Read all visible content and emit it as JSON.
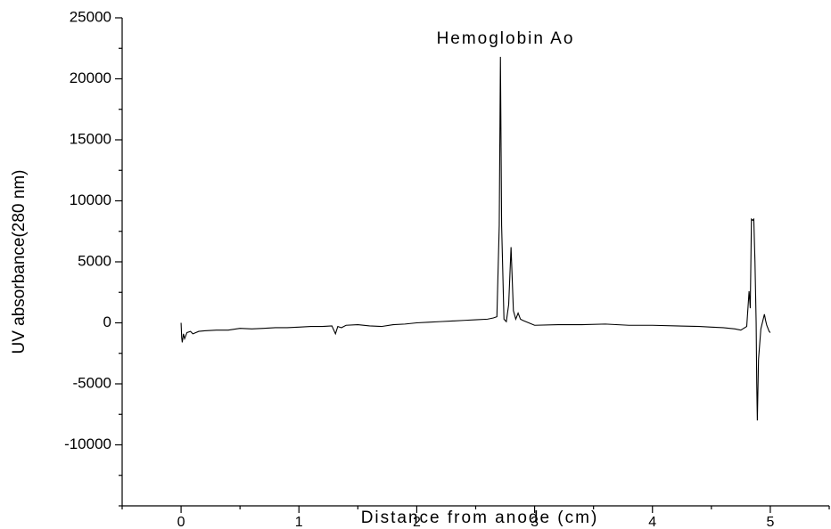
{
  "chart_data": {
    "type": "line",
    "annotation": "Hemoglobin Ao",
    "x_label": "Distance from anode (cm)",
    "y_label": "UV absorbance(280 nm)",
    "xlim": [
      -0.5,
      5.5
    ],
    "xticks": [
      0,
      1,
      2,
      3,
      4,
      5
    ],
    "ylim": [
      -15000,
      25000
    ],
    "yticks": [
      -10000,
      -5000,
      0,
      5000,
      10000,
      15000,
      20000,
      25000
    ],
    "grid": false,
    "x": [
      0,
      0.005,
      0.01,
      0.02,
      0.03,
      0.05,
      0.08,
      0.1,
      0.15,
      0.2,
      0.3,
      0.4,
      0.5,
      0.6,
      0.7,
      0.8,
      0.9,
      1.0,
      1.1,
      1.2,
      1.28,
      1.31,
      1.33,
      1.36,
      1.4,
      1.5,
      1.6,
      1.7,
      1.8,
      1.9,
      2.0,
      2.1,
      2.2,
      2.3,
      2.4,
      2.5,
      2.6,
      2.65,
      2.68,
      2.7,
      2.71,
      2.72,
      2.74,
      2.76,
      2.78,
      2.8,
      2.82,
      2.84,
      2.86,
      2.88,
      2.9,
      2.95,
      3.0,
      3.2,
      3.4,
      3.6,
      3.8,
      4.0,
      4.2,
      4.4,
      4.5,
      4.6,
      4.7,
      4.75,
      4.8,
      4.82,
      4.83,
      4.84,
      4.85,
      4.86,
      4.87,
      4.88,
      4.885,
      4.89,
      4.9,
      4.92,
      4.94,
      4.95,
      4.96,
      4.97,
      4.99,
      5.0
    ],
    "series": [
      {
        "color": "#000000",
        "values": [
          0,
          -1200,
          -1600,
          -900,
          -1300,
          -800,
          -700,
          -900,
          -700,
          -650,
          -600,
          -600,
          -450,
          -500,
          -450,
          -400,
          -400,
          -350,
          -300,
          -300,
          -250,
          -900,
          -300,
          -400,
          -200,
          -150,
          -250,
          -300,
          -150,
          -100,
          0,
          50,
          100,
          150,
          200,
          250,
          300,
          400,
          500,
          8000,
          21800,
          8000,
          300,
          100,
          1500,
          6200,
          1000,
          300,
          800,
          300,
          200,
          0,
          -200,
          -150,
          -150,
          -100,
          -200,
          -200,
          -250,
          -300,
          -350,
          -400,
          -500,
          -600,
          -300,
          2600,
          1200,
          8500,
          8400,
          8500,
          5000,
          0,
          -5000,
          -8000,
          -3000,
          -500,
          300,
          700,
          200,
          -200,
          -700,
          -800
        ]
      }
    ]
  }
}
